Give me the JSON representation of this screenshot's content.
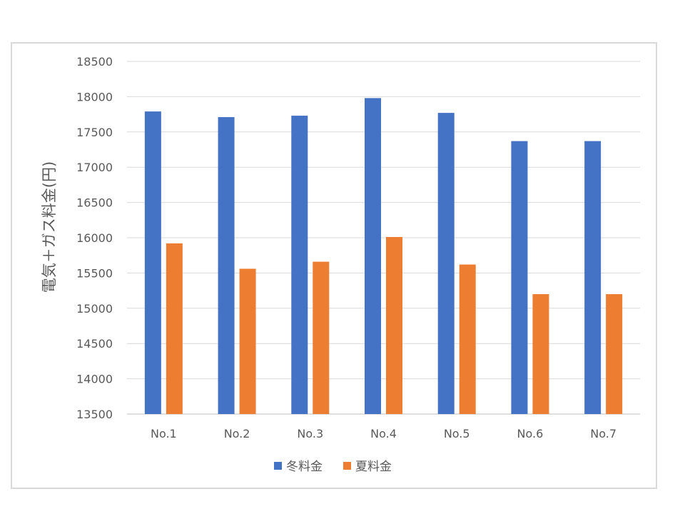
{
  "chart_data": {
    "type": "bar",
    "title": "",
    "xlabel": "",
    "ylabel": "電気＋ガス料金(円)",
    "ylim": [
      13500,
      18500
    ],
    "ytick_step": 500,
    "grid": true,
    "legend_position": "bottom",
    "categories": [
      "No.1",
      "No.2",
      "No.3",
      "No.4",
      "No.5",
      "No.6",
      "No.7"
    ],
    "series": [
      {
        "name": "冬料金",
        "color": "#4472c4",
        "values": [
          17790,
          17710,
          17730,
          17980,
          17770,
          17370,
          17370
        ]
      },
      {
        "name": "夏料金",
        "color": "#ed7d31",
        "values": [
          15920,
          15560,
          15660,
          16010,
          15620,
          15200,
          15200
        ]
      }
    ]
  }
}
